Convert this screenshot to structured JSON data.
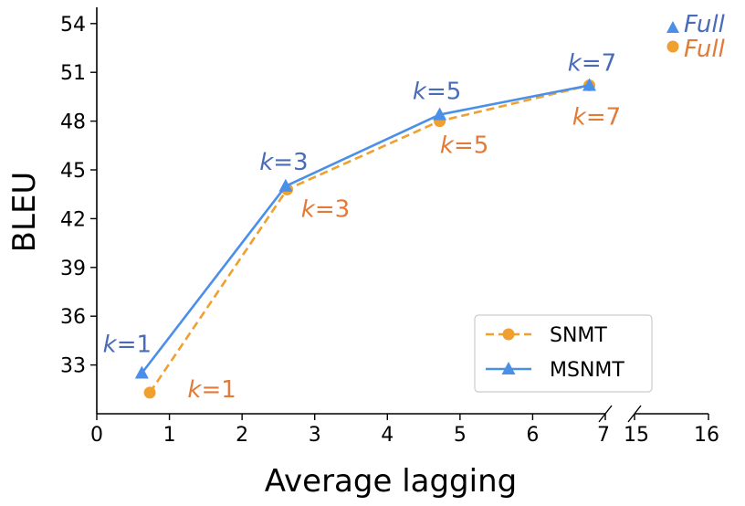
{
  "chart_data": {
    "type": "line",
    "xlabel": "Average lagging",
    "ylabel": "BLEU",
    "xlim": [
      0,
      7
    ],
    "ylim": [
      30.0,
      55.0
    ],
    "x_ticks": [
      "0",
      "1",
      "2",
      "3",
      "4",
      "5",
      "6",
      "7"
    ],
    "x_break_ticks": [
      "15",
      "16"
    ],
    "y_ticks": [
      "33",
      "36",
      "39",
      "42",
      "45",
      "48",
      "51",
      "54"
    ],
    "grid": false,
    "legend_position": "lower-right",
    "series": [
      {
        "name": "SNMT",
        "color": "#F0A030",
        "line_style": "dashed",
        "marker": "circle",
        "label_color": "#E07B39",
        "x": [
          0.73,
          2.62,
          4.72,
          6.78
        ],
        "y": [
          31.3,
          43.8,
          48.0,
          50.2
        ],
        "point_labels": [
          "k=1",
          "k=3",
          "k=5",
          "k=7"
        ],
        "full_label": "Full"
      },
      {
        "name": "MSNMT",
        "color": "#4A8FE8",
        "line_style": "solid",
        "marker": "triangle",
        "label_color": "#4A6CB8",
        "x": [
          0.62,
          2.6,
          4.72,
          6.78
        ],
        "y": [
          32.5,
          44.0,
          48.4,
          50.2
        ],
        "point_labels": [
          "k=1",
          "k=3",
          "k=5",
          "k=7"
        ],
        "full_label": "Full"
      }
    ]
  }
}
